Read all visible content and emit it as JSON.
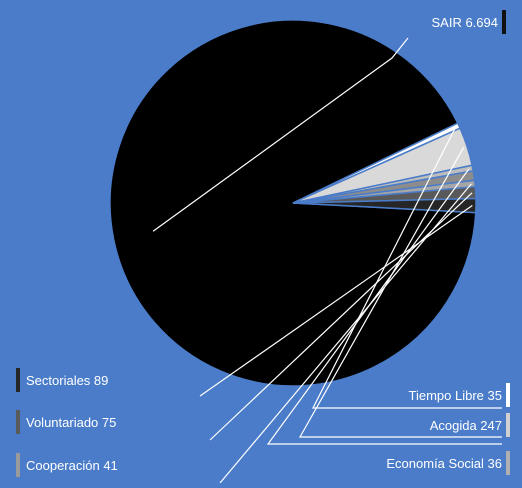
{
  "chart_data": {
    "type": "pie",
    "title": "",
    "background": "#4a7cc9",
    "label_color": "#ffffff",
    "slices": [
      {
        "label": "SAIR",
        "value": 6694,
        "text": "SAIR 6.694",
        "color": "#000000",
        "marker_color": "#111111"
      },
      {
        "label": "Tiempo Libre",
        "value": 35,
        "text": "Tiempo Libre 35",
        "color": "#ffffff",
        "marker_color": "#ffffff"
      },
      {
        "label": "Acogida",
        "value": 247,
        "text": "Acogida 247",
        "color": "#d9d9d9",
        "marker_color": "#d0d0d0"
      },
      {
        "label": "Economía Social",
        "value": 36,
        "text": "Economía Social 36",
        "color": "#bdbdbd",
        "marker_color": "#b0b0b0"
      },
      {
        "label": "",
        "value": 60,
        "text": "",
        "color": "#8c8c8c",
        "marker_color": "#8c8c8c"
      },
      {
        "label": "Cooperación",
        "value": 41,
        "text": "Cooperación 41",
        "color": "#a6a6a6",
        "marker_color": "#9a9a9a"
      },
      {
        "label": "Voluntariado",
        "value": 75,
        "text": "Voluntariado 75",
        "color": "#595959",
        "marker_color": "#5a5a5a"
      },
      {
        "label": "Sectoriales",
        "value": 89,
        "text": "Sectoriales 89",
        "color": "#262626",
        "marker_color": "#262626"
      }
    ]
  }
}
